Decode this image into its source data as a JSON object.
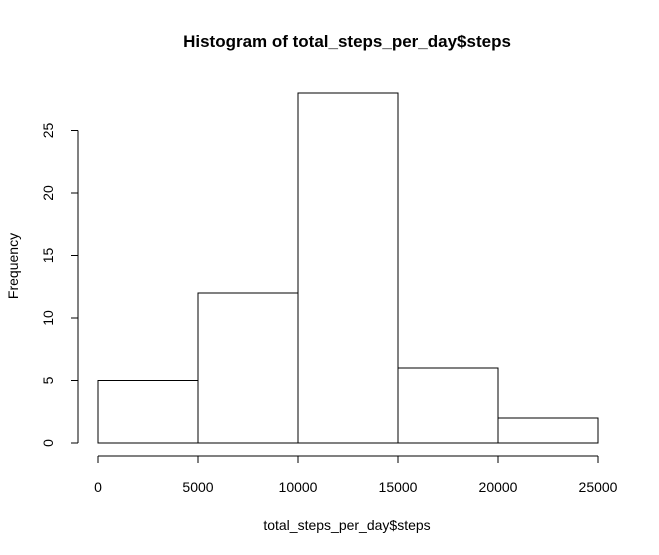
{
  "chart_data": {
    "type": "bar",
    "title": "Histogram of total_steps_per_day$steps",
    "xlabel": "total_steps_per_day$steps",
    "ylabel": "Frequency",
    "bins": [
      {
        "start": 0,
        "end": 5000,
        "count": 5
      },
      {
        "start": 5000,
        "end": 10000,
        "count": 12
      },
      {
        "start": 10000,
        "end": 15000,
        "count": 28
      },
      {
        "start": 15000,
        "end": 20000,
        "count": 6
      },
      {
        "start": 20000,
        "end": 25000,
        "count": 2
      }
    ],
    "xlim": [
      0,
      25000
    ],
    "ylim": [
      0,
      28
    ],
    "x_ticks": [
      0,
      5000,
      10000,
      15000,
      20000,
      25000
    ],
    "y_ticks": [
      0,
      5,
      10,
      15,
      20,
      25
    ],
    "grid": false,
    "colors": {
      "fill": "#ffffff",
      "stroke": "#000000"
    }
  }
}
